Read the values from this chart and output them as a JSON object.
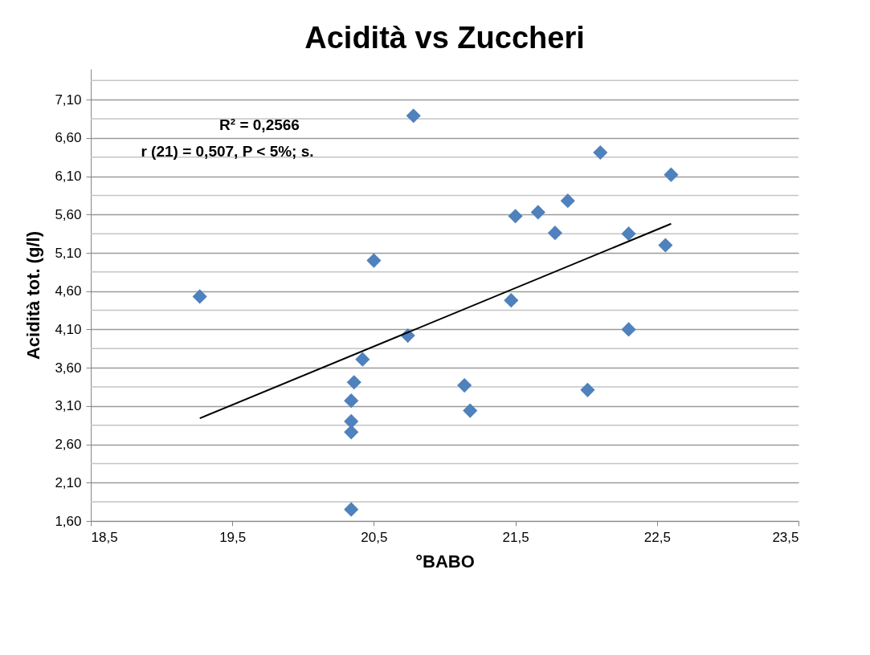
{
  "chart_data": {
    "type": "scatter",
    "title": "Acidità vs Zuccheri",
    "xlabel": "°BABO",
    "ylabel": "Acidità tot. (g/l)",
    "annotations": [
      "R² = 0,2566",
      "r (21) = 0,507,  P < 5%; s."
    ],
    "xlim": [
      18.5,
      23.5
    ],
    "xticks": [
      {
        "value": 18.5,
        "label": "18,5"
      },
      {
        "value": 19.5,
        "label": "19,5"
      },
      {
        "value": 20.5,
        "label": "20,5"
      },
      {
        "value": 21.5,
        "label": "21,5"
      },
      {
        "value": 22.5,
        "label": "22,5"
      },
      {
        "value": 23.5,
        "label": "23,5"
      }
    ],
    "ylim": [
      1.6,
      7.5
    ],
    "yticks": [
      {
        "value": 1.6,
        "label": "1,60"
      },
      {
        "value": 1.85,
        "label": null
      },
      {
        "value": 2.1,
        "label": "2,10"
      },
      {
        "value": 2.35,
        "label": null
      },
      {
        "value": 2.6,
        "label": "2,60"
      },
      {
        "value": 2.85,
        "label": null
      },
      {
        "value": 3.1,
        "label": "3,10"
      },
      {
        "value": 3.35,
        "label": null
      },
      {
        "value": 3.6,
        "label": "3,60"
      },
      {
        "value": 3.85,
        "label": null
      },
      {
        "value": 4.1,
        "label": "4,10"
      },
      {
        "value": 4.35,
        "label": null
      },
      {
        "value": 4.6,
        "label": "4,60"
      },
      {
        "value": 4.85,
        "label": null
      },
      {
        "value": 5.1,
        "label": "5,10"
      },
      {
        "value": 5.35,
        "label": null
      },
      {
        "value": 5.6,
        "label": "5,60"
      },
      {
        "value": 5.85,
        "label": null
      },
      {
        "value": 6.1,
        "label": "6,10"
      },
      {
        "value": 6.35,
        "label": null
      },
      {
        "value": 6.6,
        "label": "6,60"
      },
      {
        "value": 6.85,
        "label": null
      },
      {
        "value": 7.1,
        "label": "7,10"
      },
      {
        "value": 7.35,
        "label": null
      }
    ],
    "grid": "y",
    "series": [
      {
        "marker": "diamond",
        "color": "#4f81bd",
        "x": [
          19.27,
          20.78,
          20.5,
          20.74,
          20.42,
          20.36,
          20.34,
          20.34,
          20.34,
          20.34,
          21.14,
          21.18,
          21.47,
          21.5,
          21.66,
          21.78,
          21.87,
          22.1,
          22.01,
          22.3,
          22.3,
          22.56,
          22.6
        ],
        "values": [
          4.53,
          6.89,
          5.0,
          4.02,
          3.71,
          3.41,
          3.17,
          2.9,
          2.76,
          1.75,
          3.37,
          3.04,
          4.48,
          5.58,
          5.63,
          5.36,
          5.78,
          6.41,
          3.31,
          5.35,
          4.1,
          5.2,
          6.12
        ]
      },
      {
        "type": "line",
        "marker": "none",
        "color": "#000000",
        "x": [
          19.27,
          22.6
        ],
        "values": [
          2.94,
          5.48
        ]
      }
    ]
  }
}
